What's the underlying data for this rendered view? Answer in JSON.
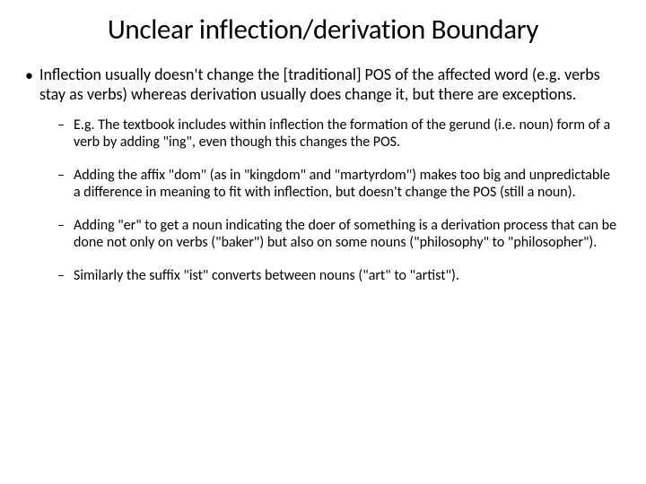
{
  "title": "Unclear inflection/derivation Boundary",
  "main_bullet": "Inflection usually doesn't change the [traditional] POS of the affected word (e.g. verbs stay as verbs) whereas derivation usually does change it, but there are exceptions.",
  "sub_bullets": [
    "E.g. The textbook includes within inflection the formation of the gerund (i.e. noun) form of a verb by adding \"ing\", even though this changes the POS.",
    "Adding the affix \"dom\" (as in \"kingdom\" and \"martyrdom\") makes too big and unpredictable a difference in meaning to fit with inflection, but doesn't change the POS (still a noun).",
    "Adding \"er\" to get a noun indicating the doer of something is a derivation process that can be done not only on verbs (\"baker\") but also on some nouns (\"philosophy\" to \"philosopher\").",
    "Similarly the suffix \"ist\" converts between nouns (\"art\" to \"artist\")."
  ],
  "colors": {
    "background": "#ffffff",
    "text": "#000000"
  },
  "fonts": {
    "title_size": 31,
    "body_size": 18,
    "sub_size": 16
  }
}
